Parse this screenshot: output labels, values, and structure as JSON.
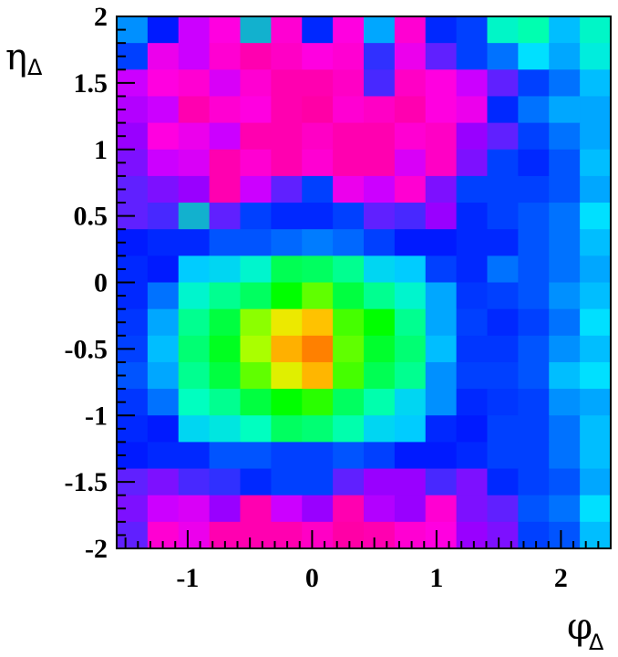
{
  "chart_data": {
    "type": "heatmap",
    "xlabel": "φ",
    "xlabel_sub": "Δ",
    "ylabel": "η",
    "ylabel_sub": "Δ",
    "xlim": [
      -1.5708,
      4.7124
    ],
    "xlim_visible": [
      -1.5708,
      2.4
    ],
    "ylim": [
      -2,
      2
    ],
    "x_ticks": [
      {
        "value": -1,
        "label": "-1"
      },
      {
        "value": 0,
        "label": "0"
      },
      {
        "value": 1,
        "label": "1"
      },
      {
        "value": 2,
        "label": "2"
      }
    ],
    "y_ticks": [
      {
        "value": -2,
        "label": "-2"
      },
      {
        "value": -1.5,
        "label": "-1.5"
      },
      {
        "value": -1,
        "label": "-1"
      },
      {
        "value": -0.5,
        "label": "-0.5"
      },
      {
        "value": 0,
        "label": "0"
      },
      {
        "value": 0.5,
        "label": "0.5"
      },
      {
        "value": 1,
        "label": "1"
      },
      {
        "value": 1.5,
        "label": "1.5"
      },
      {
        "value": 2,
        "label": "2"
      }
    ],
    "nx": 16,
    "ny": 20,
    "colormap": [
      "#0000ff",
      "#0080ff",
      "#00ffff",
      "#00ff80",
      "#00ff00",
      "#80ff00",
      "#ffff00",
      "#ff8000"
    ],
    "low_colormap": [
      "#3020ff",
      "#8000ff",
      "#c000ff",
      "#ff00c0",
      "#ff0080"
    ],
    "z_rows_top_to_bottom": [
      [
        0.18,
        0.02,
        0.7,
        0.78,
        0.35,
        0.8,
        0.05,
        0.78,
        0.2,
        0.8,
        0.05,
        0.1,
        0.3,
        0.32,
        0.22,
        0.3
      ],
      [
        0.1,
        0.75,
        0.7,
        0.8,
        0.85,
        0.82,
        0.78,
        0.8,
        0.4,
        0.75,
        0.5,
        0.1,
        0.15,
        0.25,
        0.2,
        0.28
      ],
      [
        0.7,
        0.78,
        0.8,
        0.72,
        0.8,
        0.85,
        0.85,
        0.82,
        0.45,
        0.82,
        0.78,
        0.7,
        0.5,
        0.1,
        0.15,
        0.22
      ],
      [
        0.65,
        0.7,
        0.85,
        0.8,
        0.78,
        0.85,
        0.88,
        0.8,
        0.82,
        0.85,
        0.78,
        0.75,
        0.05,
        0.15,
        0.2,
        0.2
      ],
      [
        0.6,
        0.78,
        0.75,
        0.7,
        0.85,
        0.85,
        0.82,
        0.85,
        0.85,
        0.8,
        0.82,
        0.6,
        0.5,
        0.1,
        0.15,
        0.2
      ],
      [
        0.55,
        0.7,
        0.72,
        0.85,
        0.8,
        0.85,
        0.8,
        0.85,
        0.85,
        0.72,
        0.82,
        0.55,
        0.1,
        0.05,
        0.12,
        0.22
      ],
      [
        0.5,
        0.55,
        0.6,
        0.85,
        0.7,
        0.5,
        0.1,
        0.75,
        0.7,
        0.8,
        0.55,
        0.1,
        0.1,
        0.1,
        0.12,
        0.2
      ],
      [
        0.5,
        0.45,
        0.35,
        0.5,
        0.1,
        0.05,
        0.05,
        0.1,
        0.5,
        0.45,
        0.6,
        0.05,
        0.1,
        0.12,
        0.15,
        0.25
      ],
      [
        0.02,
        0.05,
        0.05,
        0.12,
        0.12,
        0.14,
        0.16,
        0.14,
        0.1,
        0.02,
        0.02,
        0.05,
        0.05,
        0.12,
        0.15,
        0.22
      ],
      [
        0.05,
        0.02,
        0.2,
        0.22,
        0.28,
        0.42,
        0.4,
        0.35,
        0.22,
        0.2,
        0.1,
        0.05,
        0.15,
        0.12,
        0.15,
        0.2
      ],
      [
        0.05,
        0.15,
        0.28,
        0.35,
        0.4,
        0.55,
        0.62,
        0.45,
        0.35,
        0.28,
        0.2,
        0.08,
        0.1,
        0.12,
        0.18,
        0.22
      ],
      [
        0.08,
        0.2,
        0.35,
        0.45,
        0.68,
        0.82,
        0.9,
        0.6,
        0.55,
        0.35,
        0.2,
        0.1,
        0.05,
        0.1,
        0.15,
        0.25
      ],
      [
        0.1,
        0.22,
        0.38,
        0.5,
        0.72,
        0.93,
        1.0,
        0.62,
        0.48,
        0.38,
        0.22,
        0.08,
        0.08,
        0.12,
        0.18,
        0.22
      ],
      [
        0.12,
        0.2,
        0.35,
        0.45,
        0.62,
        0.8,
        0.92,
        0.6,
        0.42,
        0.35,
        0.18,
        0.1,
        0.1,
        0.12,
        0.22,
        0.25
      ],
      [
        0.08,
        0.15,
        0.3,
        0.35,
        0.45,
        0.55,
        0.58,
        0.4,
        0.32,
        0.22,
        0.18,
        0.05,
        0.08,
        0.1,
        0.18,
        0.2
      ],
      [
        0.05,
        0.02,
        0.22,
        0.25,
        0.3,
        0.4,
        0.38,
        0.32,
        0.22,
        0.2,
        0.05,
        0.02,
        0.1,
        0.1,
        0.15,
        0.22
      ],
      [
        0.02,
        0.05,
        0.05,
        0.12,
        0.12,
        0.1,
        0.1,
        0.12,
        0.1,
        0.02,
        0.02,
        0.05,
        0.1,
        0.1,
        0.15,
        0.22
      ],
      [
        0.5,
        0.55,
        0.45,
        0.4,
        0.05,
        0.1,
        0.1,
        0.5,
        0.6,
        0.6,
        0.45,
        0.55,
        0.05,
        0.1,
        0.12,
        0.2
      ],
      [
        0.55,
        0.7,
        0.72,
        0.6,
        0.85,
        0.7,
        0.6,
        0.85,
        0.65,
        0.6,
        0.8,
        0.55,
        0.5,
        0.12,
        0.15,
        0.25
      ],
      [
        0.5,
        0.8,
        0.75,
        0.85,
        0.85,
        0.85,
        0.82,
        0.88,
        0.85,
        0.8,
        0.78,
        0.6,
        0.55,
        0.1,
        0.12,
        0.22
      ]
    ],
    "notes_colormap": "ROOT-style rainbow palette: low values in magenta/purple through blue, cyan, green, yellow, orange at peak"
  }
}
